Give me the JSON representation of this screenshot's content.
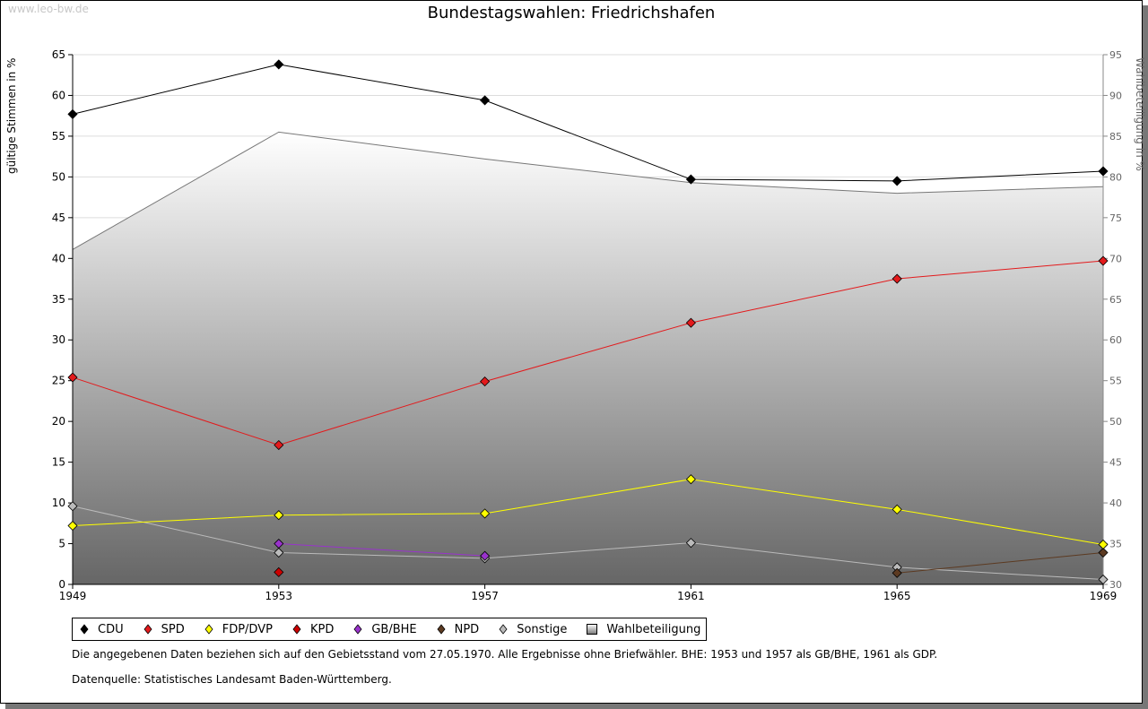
{
  "watermark": "www.leo-bw.de",
  "title": "Bundestagswahlen: Friedrichshafen",
  "chart_data": {
    "type": "line",
    "title": "Bundestagswahlen: Friedrichshafen",
    "xlabel": "",
    "ylabel": "gültige Stimmen in %",
    "y2label": "Wahlbeteiligung in %",
    "x": [
      1949,
      1953,
      1957,
      1961,
      1965,
      1969
    ],
    "ylim": [
      0,
      65
    ],
    "y2lim": [
      30,
      95
    ],
    "yticks": [
      0,
      5,
      10,
      15,
      20,
      25,
      30,
      35,
      40,
      45,
      50,
      55,
      60,
      65
    ],
    "y2ticks": [
      30,
      35,
      40,
      45,
      50,
      55,
      60,
      65,
      70,
      75,
      80,
      85,
      90,
      95
    ],
    "grid": true,
    "legend_position": "bottom",
    "series": [
      {
        "name": "CDU",
        "color": "#000000",
        "values": [
          57.7,
          63.8,
          59.4,
          49.7,
          49.5,
          50.7
        ]
      },
      {
        "name": "SPD",
        "color": "#e31a1c",
        "values": [
          25.4,
          17.1,
          24.9,
          32.1,
          37.5,
          39.7
        ]
      },
      {
        "name": "FDP/DVP",
        "color": "#ffff00",
        "values": [
          7.2,
          8.5,
          8.7,
          12.9,
          9.2,
          4.9
        ]
      },
      {
        "name": "KPD",
        "color": "#cc0000",
        "values": [
          null,
          1.5,
          null,
          null,
          null,
          null
        ]
      },
      {
        "name": "GB/BHE",
        "color": "#9933cc",
        "values": [
          null,
          5.0,
          3.5,
          null,
          null,
          null
        ]
      },
      {
        "name": "NPD",
        "color": "#5c3a21",
        "values": [
          null,
          null,
          null,
          null,
          1.4,
          3.9
        ]
      },
      {
        "name": "Sonstige",
        "color": "#bbbbbb",
        "values": [
          9.6,
          3.9,
          3.2,
          5.1,
          2.1,
          0.6
        ]
      }
    ],
    "area_series": {
      "name": "Wahlbeteiligung",
      "axis": "right",
      "values": [
        71.1,
        85.5,
        82.2,
        79.3,
        78.0,
        78.8
      ]
    }
  },
  "notes": [
    "Die angegebenen Daten beziehen sich auf den Gebietsstand vom 27.05.1970. Alle Ergebnisse ohne Briefwähler. BHE: 1953 und 1957 als GB/BHE, 1961 als GDP.",
    "Datenquelle: Statistisches Landesamt Baden-Württemberg."
  ]
}
